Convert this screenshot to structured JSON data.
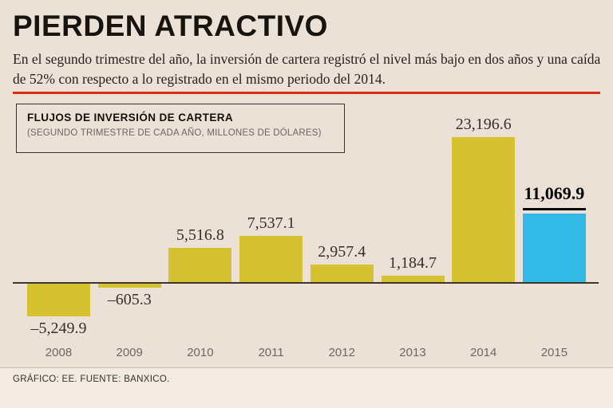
{
  "header": {
    "title": "PIERDEN ATRACTIVO",
    "subtitle": "En el segundo trimestre del año, la inversión de cartera registró el nivel más bajo en dos años y una caída de 52% con respecto a lo registrado en el mismo periodo del 2014."
  },
  "legend": {
    "title": "FLUJOS DE INVERSIÓN DE CARTERA",
    "subtitle": "(SEGUNDO TRIMESTRE DE CADA AÑO, MILLONES DE DÓLARES)"
  },
  "footer": {
    "source": "GRÁFICO: EE. FUENTE: BANXICO."
  },
  "colors": {
    "background": "#ece1d6",
    "accent_red": "#e02a17",
    "bar": "#d6c230",
    "highlight_bar": "#33b9e6",
    "axis_line": "#3d362e",
    "value_label": "#35302a",
    "year_label": "#6f6860"
  },
  "chart_data": {
    "type": "bar",
    "title": "FLUJOS DE INVERSIÓN DE CARTERA",
    "subtitle": "(SEGUNDO TRIMESTRE DE CADA AÑO, MILLONES DE DÓLARES)",
    "categories": [
      "2008",
      "2009",
      "2010",
      "2011",
      "2012",
      "2013",
      "2014",
      "2015"
    ],
    "values": [
      -5249.9,
      -605.3,
      5516.8,
      7537.1,
      2957.4,
      1184.7,
      23196.6,
      11069.9
    ],
    "value_labels": [
      "–5,249.9",
      "–605.3",
      "5,516.8",
      "7,537.1",
      "2,957.4",
      "1,184.7",
      "23,196.6",
      "11,069.9"
    ],
    "highlight_index": 7,
    "ylim": [
      -6000,
      25000
    ],
    "grid": false,
    "legend_position": "top-left",
    "xlabel": "",
    "ylabel": "MILLONES DE DÓLARES"
  }
}
